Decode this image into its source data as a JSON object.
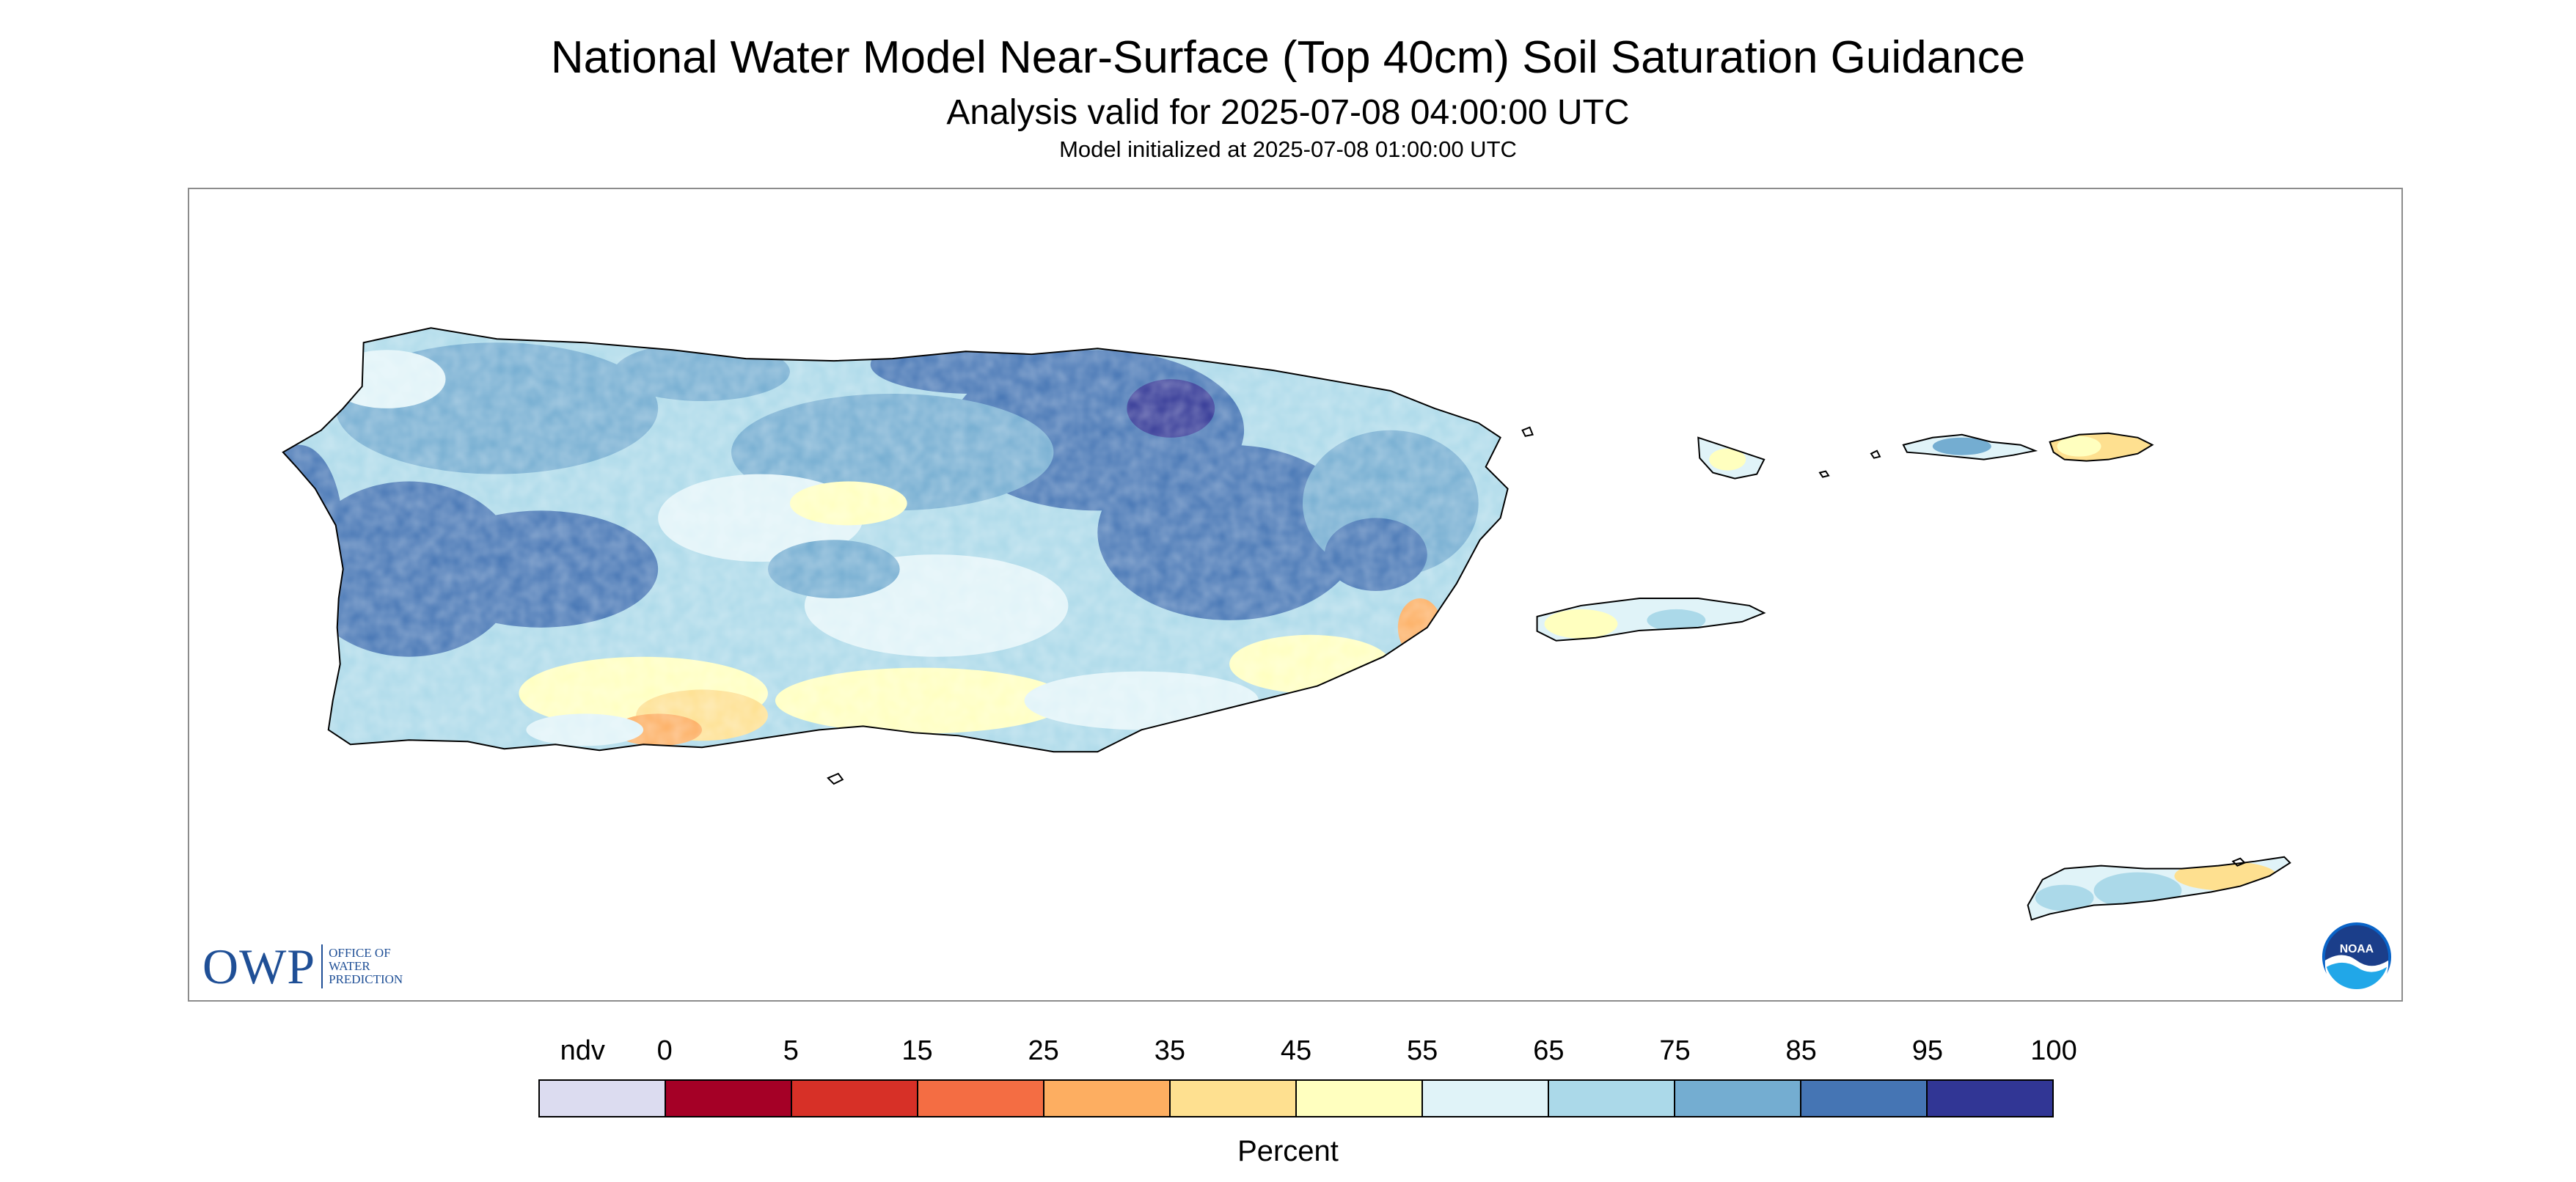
{
  "title": "National Water Model Near-Surface (Top 40cm) Soil Saturation Guidance",
  "subtitle": "Analysis valid for 2025-07-08 04:00:00 UTC",
  "subsubtitle": "Model initialized at 2025-07-08 01:00:00 UTC",
  "logos": {
    "owp_mark": "OWP",
    "owp_text": "OFFICE OF\nWATER\nPREDICTION",
    "noaa_text": "NOAA"
  },
  "legend": {
    "title": "Percent",
    "ticks": [
      "ndv",
      "0",
      "5",
      "15",
      "25",
      "35",
      "45",
      "55",
      "65",
      "75",
      "85",
      "95",
      "100"
    ],
    "colors": [
      "#dcdcf0",
      "#a50026",
      "#d73027",
      "#f46d43",
      "#fdae61",
      "#fee090",
      "#ffffbf",
      "#e0f3f8",
      "#abd9e9",
      "#74add1",
      "#4575b4",
      "#313695"
    ]
  },
  "map": {
    "land_outline_color": "#000000",
    "frame_color": "#8c8c8c"
  }
}
